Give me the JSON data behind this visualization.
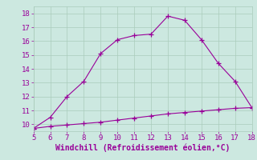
{
  "xlabel": "Windchill (Refroidissement éolien,°C)",
  "x_upper": [
    5,
    6,
    7,
    8,
    9,
    10,
    11,
    12,
    13,
    14,
    15,
    16,
    17,
    18
  ],
  "y_upper": [
    9.7,
    10.5,
    12.0,
    13.1,
    15.1,
    16.1,
    16.4,
    16.5,
    17.8,
    17.5,
    16.1,
    14.4,
    13.1,
    11.2
  ],
  "x_lower": [
    5,
    6,
    7,
    8,
    9,
    10,
    11,
    12,
    13,
    14,
    15,
    16,
    17,
    18
  ],
  "y_lower": [
    9.7,
    9.85,
    9.95,
    10.05,
    10.15,
    10.3,
    10.45,
    10.6,
    10.75,
    10.85,
    10.95,
    11.05,
    11.15,
    11.2
  ],
  "line_color": "#990099",
  "marker": "+",
  "markersize": 4,
  "linewidth": 0.8,
  "bg_color": "#cce8e0",
  "grid_color": "#aaccbb",
  "tick_color": "#990099",
  "label_color": "#990099",
  "xlim": [
    5,
    18
  ],
  "ylim": [
    9.5,
    18.5
  ],
  "xticks": [
    5,
    6,
    7,
    8,
    9,
    10,
    11,
    12,
    13,
    14,
    15,
    16,
    17,
    18
  ],
  "yticks": [
    10,
    11,
    12,
    13,
    14,
    15,
    16,
    17,
    18
  ],
  "tick_fontsize": 6.5,
  "xlabel_fontsize": 7.0
}
